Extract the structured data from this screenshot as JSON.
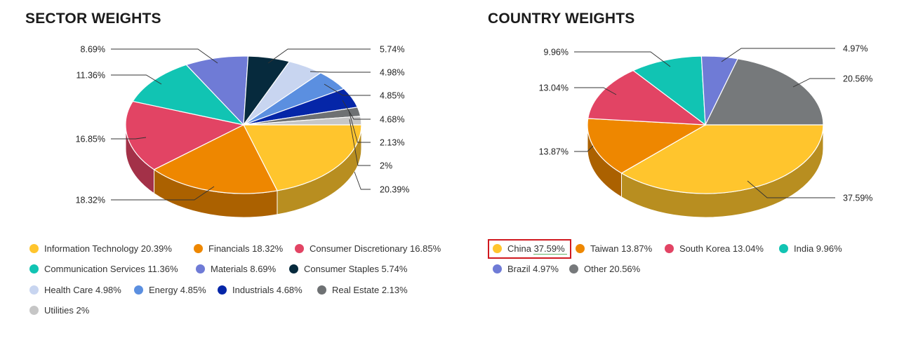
{
  "charts": {
    "sector": {
      "title": "SECTOR WEIGHTS"
    },
    "country": {
      "title": "COUNTRY WEIGHTS"
    }
  },
  "chart_data": [
    {
      "type": "pie",
      "title": "SECTOR WEIGHTS",
      "slices": [
        {
          "label": "Information Technology",
          "value": 20.39,
          "value_label": "20.39%",
          "legend": "Information Technology 20.39%",
          "color": "#ffc52d"
        },
        {
          "label": "Financials",
          "value": 18.32,
          "value_label": "18.32%",
          "legend": "Financials 18.32%",
          "color": "#ee8700"
        },
        {
          "label": "Consumer Discretionary",
          "value": 16.85,
          "value_label": "16.85%",
          "legend": "Consumer Discretionary 16.85%",
          "color": "#e24464"
        },
        {
          "label": "Communication Services",
          "value": 11.36,
          "value_label": "11.36%",
          "legend": "Communication Services 11.36%",
          "color": "#11c4b3"
        },
        {
          "label": "Materials",
          "value": 8.69,
          "value_label": "8.69%",
          "legend": "Materials 8.69%",
          "color": "#6f7bd6"
        },
        {
          "label": "Consumer Staples",
          "value": 5.74,
          "value_label": "5.74%",
          "legend": "Consumer Staples 5.74%",
          "color": "#062a3d"
        },
        {
          "label": "Health Care",
          "value": 4.98,
          "value_label": "4.98%",
          "legend": "Health Care 4.98%",
          "color": "#c8d5f0"
        },
        {
          "label": "Energy",
          "value": 4.85,
          "value_label": "4.85%",
          "legend": "Energy 4.85%",
          "color": "#5b8fe0"
        },
        {
          "label": "Industrials",
          "value": 4.68,
          "value_label": "4.68%",
          "legend": "Industrials 4.68%",
          "color": "#0526a8"
        },
        {
          "label": "Real Estate",
          "value": 2.13,
          "value_label": "2.13%",
          "legend": "Real Estate 2.13%",
          "color": "#6e7173"
        },
        {
          "label": "Utilities",
          "value": 2,
          "value_label": "2%",
          "legend": "Utilities 2%",
          "color": "#c6c6c6"
        }
      ]
    },
    {
      "type": "pie",
      "title": "COUNTRY WEIGHTS",
      "slices": [
        {
          "label": "China",
          "value": 37.59,
          "value_label": "37.59%",
          "legend": "China 37.59%",
          "color": "#ffc52d",
          "highlighted": true
        },
        {
          "label": "Taiwan",
          "value": 13.87,
          "value_label": "13.87%",
          "legend": "Taiwan 13.87%",
          "color": "#ee8700"
        },
        {
          "label": "South Korea",
          "value": 13.04,
          "value_label": "13.04%",
          "legend": "South Korea 13.04%",
          "color": "#e24464"
        },
        {
          "label": "India",
          "value": 9.96,
          "value_label": "9.96%",
          "legend": "India 9.96%",
          "color": "#11c4b3"
        },
        {
          "label": "Brazil",
          "value": 4.97,
          "value_label": "4.97%",
          "legend": "Brazil 4.97%",
          "color": "#6f7bd6"
        },
        {
          "label": "Other",
          "value": 20.56,
          "value_label": "20.56%",
          "legend": "Other 20.56%",
          "color": "#76797b"
        }
      ]
    }
  ]
}
